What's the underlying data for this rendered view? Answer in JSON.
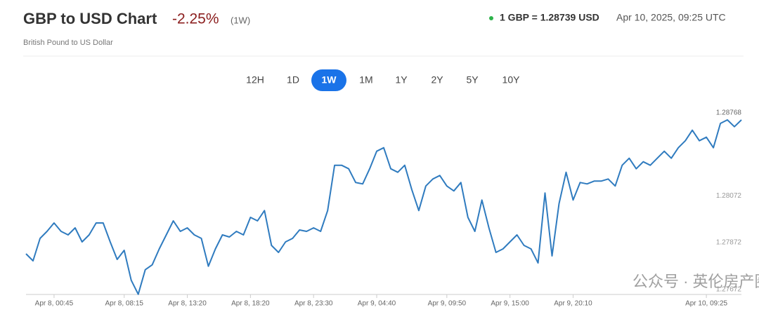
{
  "header": {
    "title": "GBP to USD Chart",
    "change": "-2.25%",
    "period": "(1W)",
    "subtitle": "British Pound to US Dollar",
    "rate": "1 GBP = 1.28739 USD",
    "timestamp": "Apr 10, 2025, 09:25 UTC"
  },
  "buttons": [
    "12H",
    "1D",
    "1W",
    "1M",
    "1Y",
    "2Y",
    "5Y",
    "10Y"
  ],
  "active_button": 2,
  "watermark": "公众号 · 英伦房产圈",
  "chart_data": {
    "type": "line",
    "color": "#2f7bbf",
    "grid": false,
    "annotation": "1.28768",
    "xlim": [
      0,
      102
    ],
    "xticks": [
      {
        "value": 4,
        "label": "Apr 8, 00:45"
      },
      {
        "value": 14,
        "label": "Apr 8, 08:15"
      },
      {
        "value": 23,
        "label": "Apr 8, 13:20"
      },
      {
        "value": 32,
        "label": "Apr 8, 18:20"
      },
      {
        "value": 41,
        "label": "Apr 8, 23:30"
      },
      {
        "value": 50,
        "label": "Apr 9, 04:40"
      },
      {
        "value": 60,
        "label": "Apr 9, 09:50"
      },
      {
        "value": 69,
        "label": "Apr 9, 15:00"
      },
      {
        "value": 78,
        "label": "Apr 9, 20:10"
      },
      {
        "value": 97,
        "label": "Apr 10, 09:25"
      }
    ],
    "ylim": [
      1.2765,
      1.2846
    ],
    "yticks": [
      1.27672,
      1.27872,
      1.28072
    ],
    "x": [
      0,
      1,
      2,
      3,
      4,
      5,
      6,
      7,
      8,
      9,
      10,
      11,
      12,
      13,
      14,
      15,
      16,
      17,
      18,
      19,
      20,
      21,
      22,
      23,
      24,
      25,
      26,
      27,
      28,
      29,
      30,
      31,
      32,
      33,
      34,
      35,
      36,
      37,
      38,
      39,
      40,
      41,
      42,
      43,
      44,
      45,
      46,
      47,
      48,
      49,
      50,
      51,
      52,
      53,
      54,
      55,
      56,
      57,
      58,
      59,
      60,
      61,
      62,
      63,
      64,
      65,
      66,
      67,
      68,
      69,
      70,
      71,
      72,
      73,
      74,
      75,
      76,
      77,
      78,
      79,
      80,
      81,
      82,
      83,
      84,
      85,
      86,
      87,
      88,
      89,
      90,
      91,
      92,
      93,
      94,
      95,
      96,
      97,
      98,
      99,
      100,
      101,
      102
    ],
    "values": [
      1.27824,
      1.27794,
      1.2789,
      1.2792,
      1.27956,
      1.2792,
      1.27905,
      1.27935,
      1.27875,
      1.27905,
      1.27956,
      1.27956,
      1.27875,
      1.278,
      1.27839,
      1.27711,
      1.27651,
      1.27756,
      1.27777,
      1.27845,
      1.27905,
      1.27965,
      1.2792,
      1.27935,
      1.27905,
      1.2789,
      1.27771,
      1.27845,
      1.27905,
      1.27896,
      1.2792,
      1.27905,
      1.2798,
      1.27965,
      1.28009,
      1.2786,
      1.2783,
      1.27875,
      1.2789,
      1.27926,
      1.2792,
      1.27935,
      1.2792,
      1.28009,
      1.28203,
      1.28203,
      1.28188,
      1.28129,
      1.28123,
      1.28188,
      1.28263,
      1.28278,
      1.28188,
      1.28173,
      1.28203,
      1.28099,
      1.28009,
      1.28114,
      1.28144,
      1.28159,
      1.28114,
      1.28093,
      1.28129,
      1.2798,
      1.2792,
      1.28054,
      1.27935,
      1.2783,
      1.27845,
      1.27875,
      1.27905,
      1.2786,
      1.27845,
      1.27785,
      1.28084,
      1.27815,
      1.28039,
      1.28173,
      1.28054,
      1.28129,
      1.28123,
      1.28135,
      1.28135,
      1.28144,
      1.28114,
      1.28203,
      1.28233,
      1.28188,
      1.28218,
      1.28203,
      1.28233,
      1.28263,
      1.28233,
      1.28278,
      1.28308,
      1.28353,
      1.28308,
      1.28323,
      1.28278,
      1.28382,
      1.28397,
      1.28368,
      1.28397
    ]
  }
}
